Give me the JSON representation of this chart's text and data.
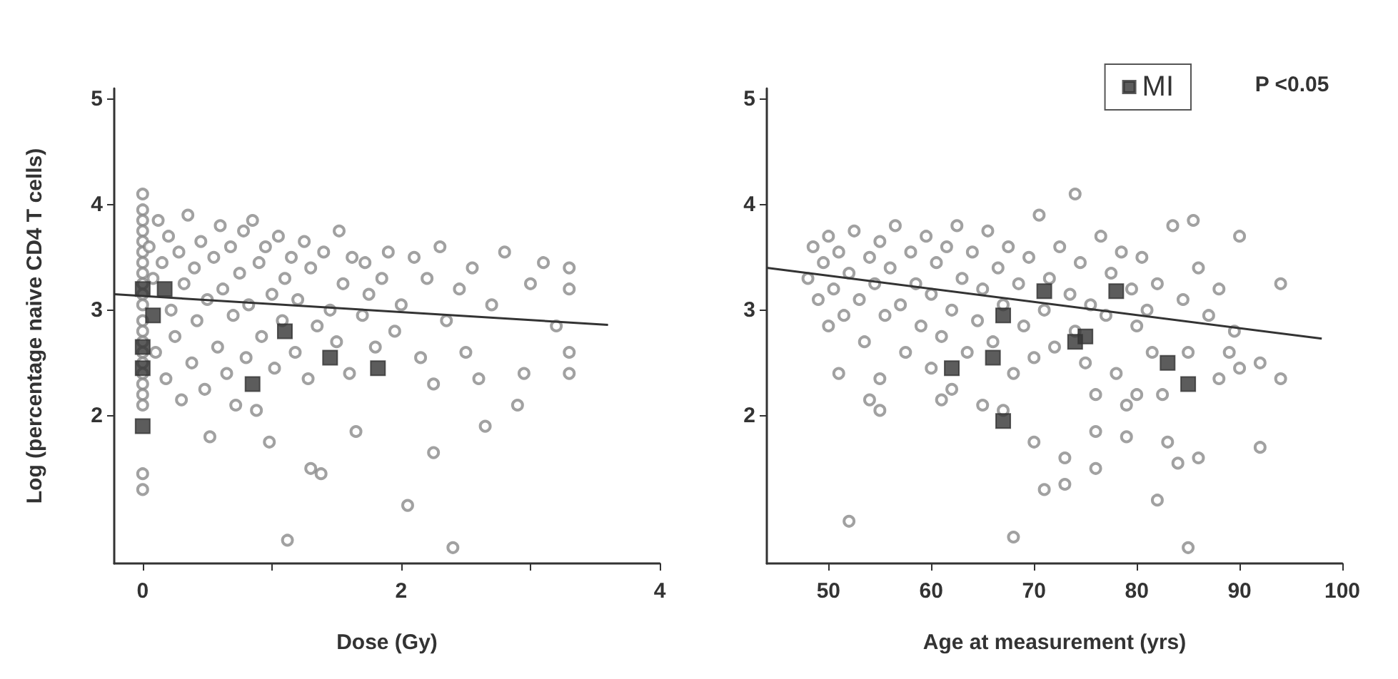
{
  "chart_data": [
    {
      "type": "scatter",
      "ylabel": "Log (percentage naive CD4 T cells)",
      "xlabel": "Dose (Gy)",
      "xlim": [
        -0.22,
        4
      ],
      "xticks": [
        0,
        {
          "value": 1,
          "label": null
        },
        2,
        {
          "value": 3,
          "label": null
        },
        4
      ],
      "ylim": [
        0.6,
        5.1
      ],
      "yticks": [
        2,
        3,
        4,
        5
      ],
      "grid": false,
      "legend": false,
      "series": [
        {
          "color": "#8a8a8a",
          "marker": "circle",
          "x": [
            0,
            0,
            0,
            0,
            0,
            0,
            0,
            0,
            0,
            0,
            0,
            0,
            0,
            0,
            0,
            0,
            0,
            0,
            0,
            0,
            0,
            0,
            0.05,
            0.08,
            0.1,
            0.12,
            0.15,
            0.18,
            0.2,
            0.22,
            0.25,
            0.28,
            0.3,
            0.32,
            0.35,
            0.38,
            0.4,
            0.42,
            0.45,
            0.48,
            0.5,
            0.52,
            0.55,
            0.58,
            0.6,
            0.62,
            0.65,
            0.68,
            0.7,
            0.72,
            0.75,
            0.78,
            0.8,
            0.82,
            0.85,
            0.88,
            0.9,
            0.92,
            0.95,
            0.98,
            1.0,
            1.02,
            1.05,
            1.08,
            1.1,
            1.12,
            1.15,
            1.18,
            1.2,
            1.25,
            1.28,
            1.3,
            1.35,
            1.38,
            1.4,
            1.45,
            1.5,
            1.52,
            1.55,
            1.6,
            1.62,
            1.65,
            1.7,
            1.72,
            1.75,
            1.8,
            1.85,
            1.9,
            1.95,
            2.0,
            2.05,
            2.1,
            2.15,
            2.2,
            2.25,
            2.3,
            2.35,
            2.4,
            2.45,
            2.5,
            2.55,
            2.6,
            2.65,
            2.7,
            2.8,
            2.9,
            2.95,
            3.0,
            3.1,
            3.2,
            3.3,
            3.3,
            3.3,
            3.3,
            2.25,
            1.3
          ],
          "values": [
            4.1,
            3.95,
            3.85,
            3.75,
            3.65,
            3.55,
            3.45,
            3.35,
            3.25,
            3.15,
            3.05,
            2.9,
            2.8,
            2.7,
            2.6,
            2.5,
            2.4,
            2.3,
            2.2,
            2.1,
            1.45,
            1.3,
            3.6,
            3.3,
            2.6,
            3.85,
            3.45,
            2.35,
            3.7,
            3.0,
            2.75,
            3.55,
            2.15,
            3.25,
            3.9,
            2.5,
            3.4,
            2.9,
            3.65,
            2.25,
            3.1,
            1.8,
            3.5,
            2.65,
            3.8,
            3.2,
            2.4,
            3.6,
            2.95,
            2.1,
            3.35,
            3.75,
            2.55,
            3.05,
            3.85,
            2.05,
            3.45,
            2.75,
            3.6,
            1.75,
            3.15,
            2.45,
            3.7,
            2.9,
            3.3,
            0.82,
            3.5,
            2.6,
            3.1,
            3.65,
            2.35,
            3.4,
            2.85,
            1.45,
            3.55,
            3.0,
            2.7,
            3.75,
            3.25,
            2.4,
            3.5,
            1.85,
            2.95,
            3.45,
            3.15,
            2.65,
            3.3,
            3.55,
            2.8,
            3.05,
            1.15,
            3.5,
            2.55,
            3.3,
            2.3,
            3.6,
            2.9,
            0.75,
            3.2,
            2.6,
            3.4,
            2.35,
            1.9,
            3.05,
            3.55,
            2.1,
            2.4,
            3.25,
            3.45,
            2.85,
            3.4,
            3.2,
            2.6,
            2.4,
            1.65,
            1.5
          ]
        },
        {
          "color": "#333333",
          "marker": "square",
          "x": [
            0,
            0,
            0,
            0,
            0.08,
            0.17,
            1.1,
            0.85,
            1.45,
            1.82
          ],
          "values": [
            3.2,
            2.65,
            2.45,
            1.9,
            2.95,
            3.2,
            2.8,
            2.3,
            2.55,
            2.45
          ]
        },
        {
          "type": "line",
          "color": "#333333",
          "marker": "none",
          "x": [
            -0.22,
            3.6
          ],
          "values": [
            3.15,
            2.86
          ]
        }
      ]
    },
    {
      "type": "scatter",
      "xlabel": "Age at measurement (yrs)",
      "xlim": [
        44,
        100
      ],
      "xticks": [
        50,
        60,
        70,
        80,
        90,
        100
      ],
      "ylim": [
        0.6,
        5.1
      ],
      "yticks": [
        2,
        3,
        4,
        5
      ],
      "grid": false,
      "legend": "top right",
      "annotations": [
        "P <0.05"
      ],
      "series": [
        {
          "color": "#8a8a8a",
          "marker": "circle",
          "x": [
            48,
            48.5,
            49,
            49.5,
            50,
            50,
            50.5,
            51,
            51,
            51.5,
            52,
            52,
            52.5,
            53,
            53.5,
            54,
            54,
            54.5,
            55,
            55,
            55,
            55.5,
            56,
            56.5,
            57,
            57.5,
            58,
            58.5,
            59,
            59.5,
            60,
            60,
            60.5,
            61,
            61,
            61.5,
            62,
            62,
            62.5,
            63,
            63.5,
            64,
            64.5,
            65,
            65,
            65.5,
            66,
            66.5,
            67,
            67,
            67.5,
            68,
            68,
            68.5,
            69,
            69.5,
            70,
            70,
            70.5,
            71,
            71,
            71.5,
            72,
            72.5,
            73,
            73,
            73.5,
            74,
            74,
            74.5,
            75,
            75.5,
            76,
            76,
            76,
            76.5,
            77,
            77.5,
            78,
            78.5,
            79,
            79,
            79.5,
            80,
            80,
            80.5,
            81,
            81.5,
            82,
            82,
            82.5,
            83,
            83.5,
            84,
            84.5,
            85,
            85,
            85.5,
            86,
            86,
            87,
            88,
            88,
            89,
            89.5,
            90,
            90,
            92,
            92,
            94,
            94
          ],
          "values": [
            3.3,
            3.6,
            3.1,
            3.45,
            2.85,
            3.7,
            3.2,
            2.4,
            3.55,
            2.95,
            3.35,
            1.0,
            3.75,
            3.1,
            2.7,
            3.5,
            2.15,
            3.25,
            3.65,
            2.35,
            2.05,
            2.95,
            3.4,
            3.8,
            3.05,
            2.6,
            3.55,
            3.25,
            2.85,
            3.7,
            3.15,
            2.45,
            3.45,
            2.15,
            2.75,
            3.6,
            3.0,
            2.25,
            3.8,
            3.3,
            2.6,
            3.55,
            2.9,
            3.2,
            2.1,
            3.75,
            2.7,
            3.4,
            3.05,
            2.05,
            3.6,
            2.4,
            0.85,
            3.25,
            2.85,
            3.5,
            2.55,
            1.75,
            3.9,
            3.0,
            1.3,
            3.3,
            2.65,
            3.6,
            1.6,
            1.35,
            3.15,
            2.8,
            4.1,
            3.45,
            2.5,
            3.05,
            1.85,
            1.5,
            2.2,
            3.7,
            2.95,
            3.35,
            2.4,
            3.55,
            2.1,
            1.8,
            3.2,
            2.85,
            2.2,
            3.5,
            3.0,
            2.6,
            1.2,
            3.25,
            2.2,
            1.75,
            3.8,
            1.55,
            3.1,
            0.75,
            2.6,
            3.85,
            1.6,
            3.4,
            2.95,
            2.35,
            3.2,
            2.6,
            2.8,
            3.7,
            2.45,
            1.7,
            2.5,
            2.35,
            3.25
          ]
        },
        {
          "name": "MI",
          "color": "#333333",
          "marker": "square",
          "x": [
            67,
            71,
            78,
            74,
            75,
            66,
            62,
            67,
            83,
            85
          ],
          "values": [
            2.95,
            3.18,
            3.18,
            2.7,
            2.75,
            2.55,
            2.45,
            1.95,
            2.5,
            2.3
          ]
        },
        {
          "type": "line",
          "color": "#333333",
          "marker": "none",
          "x": [
            44,
            98
          ],
          "values": [
            3.4,
            2.73
          ]
        }
      ]
    }
  ]
}
